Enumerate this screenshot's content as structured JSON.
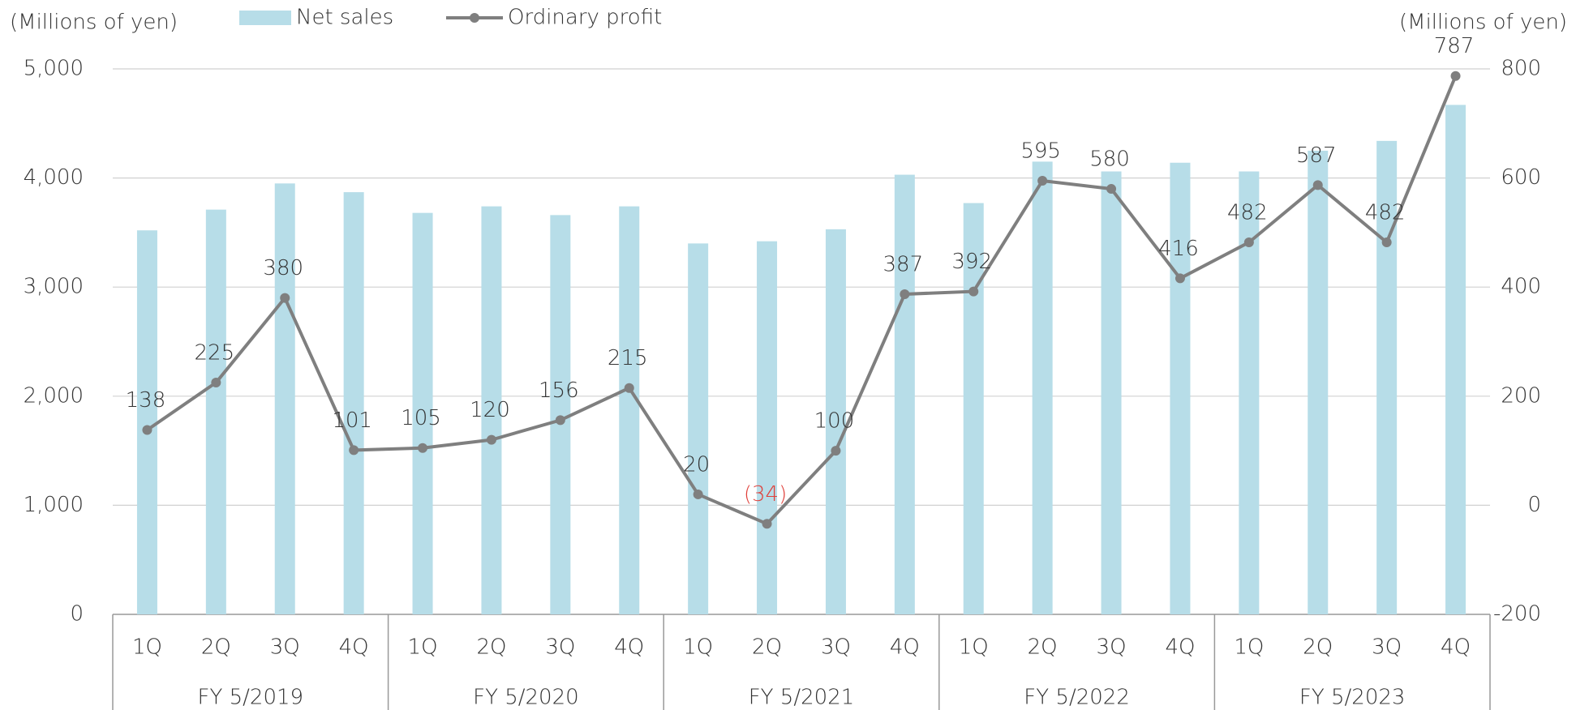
{
  "chart_data": {
    "type": "bar-line",
    "y_label": "(Millions of yen)",
    "y2_label": "(Millions of yen)",
    "categories": [
      "1Q",
      "2Q",
      "3Q",
      "4Q",
      "1Q",
      "2Q",
      "3Q",
      "4Q",
      "1Q",
      "2Q",
      "3Q",
      "4Q",
      "1Q",
      "2Q",
      "3Q",
      "4Q",
      "1Q",
      "2Q",
      "3Q",
      "4Q"
    ],
    "groups": [
      "FY 5/2019",
      "FY 5/2020",
      "FY 5/2021",
      "FY 5/2022",
      "FY 5/2023"
    ],
    "series": [
      {
        "name": "Net sales",
        "type": "bar",
        "color": "#b7dde8",
        "values": [
          3520,
          3710,
          3950,
          3870,
          3680,
          3740,
          3660,
          3740,
          3400,
          3420,
          3530,
          4030,
          3770,
          4150,
          4060,
          4140,
          4060,
          4250,
          4340,
          4670
        ]
      },
      {
        "name": "Ordinary profit",
        "type": "line",
        "axis": "y2",
        "color": "#7f7f7f",
        "values": [
          138,
          225,
          380,
          101,
          105,
          120,
          156,
          215,
          20,
          -34,
          100,
          387,
          392,
          595,
          580,
          416,
          482,
          587,
          482,
          787
        ],
        "value_labels": [
          "138",
          "225",
          "380",
          "101",
          "105",
          "120",
          "156",
          "215",
          "20",
          "(34)",
          "100",
          "387",
          "392",
          "595",
          "580",
          "416",
          "482",
          "587",
          "482",
          "787"
        ],
        "negative_label_color": "#e0403a"
      }
    ],
    "ylim": [
      0,
      5000
    ],
    "yticks": [
      0,
      {
        "value": 1000,
        "label": "1,000"
      },
      {
        "value": 2000,
        "label": "2,000"
      },
      {
        "value": 3000,
        "label": "3,000"
      },
      {
        "value": 4000,
        "label": "4,000"
      },
      {
        "value": 5000,
        "label": "5,000"
      }
    ],
    "y2lim": [
      -200,
      800
    ],
    "y2ticks": [
      -200,
      0,
      200,
      400,
      600,
      800
    ],
    "grid": true
  }
}
